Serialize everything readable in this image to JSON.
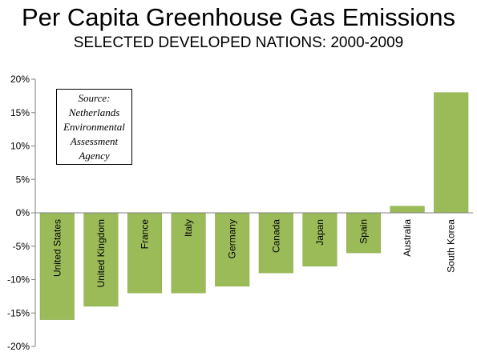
{
  "chart_data": {
    "type": "bar",
    "title": "Per Capita Greenhouse Gas Emissions",
    "subtitle": "SELECTED DEVELOPED NATIONS: 2000-2009",
    "categories": [
      "United States",
      "United Kingdom",
      "France",
      "Italy",
      "Germany",
      "Canada",
      "Japan",
      "Spain",
      "Australia",
      "South Korea"
    ],
    "values": [
      -16,
      -14,
      -12,
      -12,
      -11,
      -9,
      -8,
      -6,
      1,
      18
    ],
    "ylim": [
      -20,
      20
    ],
    "yticks": [
      20,
      15,
      10,
      5,
      0,
      -5,
      -10,
      -15,
      -20
    ],
    "ytick_labels": [
      "20%",
      "15%",
      "10%",
      "5%",
      "0%",
      "-5%",
      "-10%",
      "-15%",
      "-20%"
    ],
    "bar_color": "#9bbb59",
    "grid": false,
    "annotation": [
      "Source:",
      "Netherlands",
      "Environmental",
      "Assessment",
      "Agency"
    ]
  }
}
